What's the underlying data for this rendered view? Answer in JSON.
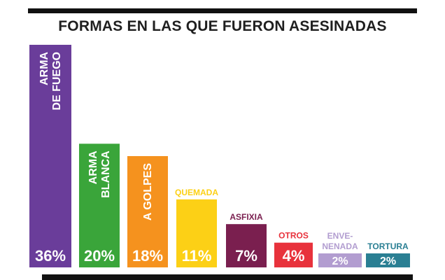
{
  "title": "FORMAS EN LAS QUE FUERON ASESINADAS",
  "colors": {
    "arma_de_fuego": "#6a3d9a",
    "arma_blanca": "#3aa53a",
    "a_golpes": "#f5921e",
    "quemada": "#fcd016",
    "asfixia": "#7a1f4f",
    "otros": "#e8323c",
    "envenenada": "#b29dd0",
    "tortura": "#2a7f93"
  },
  "chart_data": {
    "type": "bar",
    "title": "FORMAS EN LAS QUE FUERON ASESINADAS",
    "xlabel": "",
    "ylabel": "",
    "ylim": [
      0,
      36
    ],
    "grid": false,
    "categories": [
      "ARMA DE FUEGO",
      "ARMA BLANCA",
      "A GOLPES",
      "QUEMADA",
      "ASFIXIA",
      "OTROS",
      "ENVE-NENADA",
      "TORTURA"
    ],
    "label_lines": [
      [
        "ARMA",
        "DE FUEGO"
      ],
      [
        "ARMA",
        "BLANCA"
      ],
      [
        "A GOLPES"
      ],
      [
        "QUEMADA"
      ],
      [
        "ASFIXIA"
      ],
      [
        "OTROS"
      ],
      [
        "ENVE-",
        "NENADA"
      ],
      [
        "TORTURA"
      ]
    ],
    "label_placement": [
      "inside-vertical",
      "inside-vertical",
      "inside-vertical",
      "above",
      "above",
      "above",
      "above",
      "above"
    ],
    "values": [
      36,
      20,
      18,
      11,
      7,
      4,
      2,
      2
    ],
    "value_labels": [
      "36%",
      "20%",
      "18%",
      "11%",
      "7%",
      "4%",
      "2%",
      "2%"
    ],
    "bar_colors": [
      "#6a3d9a",
      "#3aa53a",
      "#f5921e",
      "#fcd016",
      "#7a1f4f",
      "#e8323c",
      "#b29dd0",
      "#2a7f93"
    ]
  }
}
